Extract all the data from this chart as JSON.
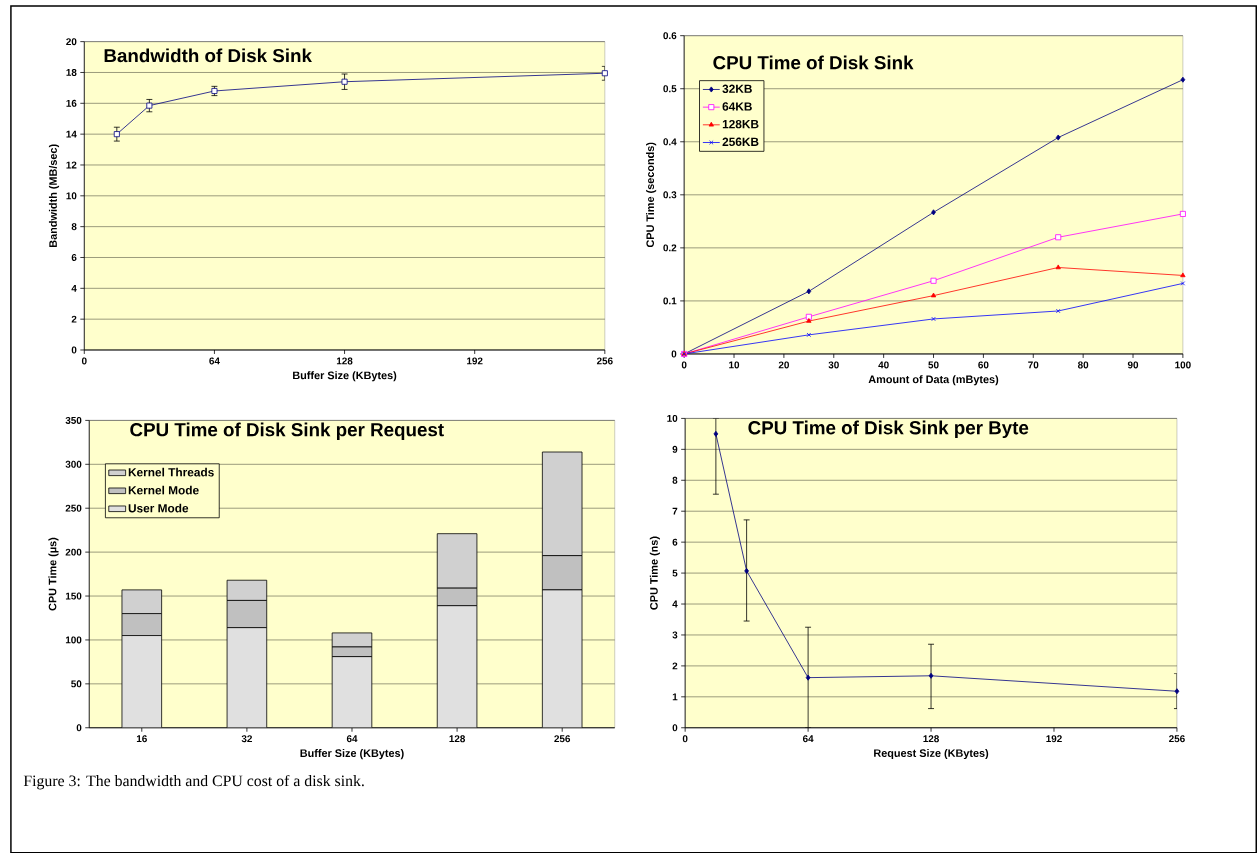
{
  "chart_data": [
    {
      "type": "line",
      "title": "Bandwidth of Disk Sink",
      "xlabel": "Buffer Size (KBytes)",
      "ylabel": "Bandwidth (MB/sec)",
      "x": [
        16,
        32,
        64,
        128,
        256
      ],
      "series": [
        {
          "color": "#000080",
          "values": [
            14.0,
            15.85,
            16.8,
            17.4,
            17.95
          ],
          "errors": [
            0.45,
            0.4,
            0.3,
            0.5,
            0.45
          ]
        }
      ],
      "xlim": [
        0,
        256
      ],
      "xticks": [
        0,
        64,
        128,
        192,
        256
      ],
      "ylim": [
        0,
        20
      ],
      "yticks": [
        0,
        2,
        4,
        6,
        8,
        10,
        12,
        14,
        16,
        18,
        20
      ],
      "grid": "y",
      "marker": "square"
    },
    {
      "type": "line",
      "title": "CPU Time of Disk Sink",
      "xlabel": "Amount of Data (mBytes)",
      "ylabel": "CPU Time (seconds)",
      "x": [
        0,
        25,
        50,
        75,
        100
      ],
      "series": [
        {
          "name": "32KB",
          "color": "#000080",
          "marker": "diamond",
          "values": [
            0,
            0.118,
            0.267,
            0.408,
            0.517
          ]
        },
        {
          "name": "64KB",
          "color": "#ff00ff",
          "marker": "square",
          "values": [
            0,
            0.07,
            0.138,
            0.22,
            0.264
          ]
        },
        {
          "name": "128KB",
          "color": "#ff0000",
          "marker": "triangle",
          "values": [
            0,
            0.062,
            0.11,
            0.163,
            0.148
          ]
        },
        {
          "name": "256KB",
          "color": "#0000ff",
          "marker": "cross",
          "values": [
            0,
            0.036,
            0.066,
            0.081,
            0.133
          ]
        }
      ],
      "xlim": [
        0,
        100
      ],
      "xticks": [
        0,
        10,
        20,
        30,
        40,
        50,
        60,
        70,
        80,
        90,
        100
      ],
      "ylim": [
        0,
        0.6
      ],
      "yticks": [
        0,
        0.1,
        0.2,
        0.3,
        0.4,
        0.5,
        0.6
      ],
      "grid": "y",
      "legend": "top left"
    },
    {
      "type": "bar",
      "stacked": true,
      "title": "CPU Time of Disk Sink per Request",
      "xlabel": "Buffer Size (KBytes)",
      "ylabel": "CPU Time (µs)",
      "categories": [
        "16",
        "32",
        "64",
        "128",
        "256"
      ],
      "series": [
        {
          "name": "User Mode",
          "color": "#e0e0e0",
          "values": [
            105,
            114,
            81,
            139,
            157
          ]
        },
        {
          "name": "Kernel Mode",
          "color": "#c0c0c0",
          "values": [
            25,
            31,
            11,
            20,
            39
          ]
        },
        {
          "name": "Kernel Threads",
          "color": "#d0d0d0",
          "values": [
            27,
            23,
            16,
            62,
            118
          ]
        }
      ],
      "ylim": [
        0,
        350
      ],
      "yticks": [
        0,
        50,
        100,
        150,
        200,
        250,
        300,
        350
      ],
      "grid": "y",
      "legend": "top left",
      "annotations": [
        "Figure 3: The bandwidth and CPU cost of a disk sink."
      ]
    },
    {
      "type": "line",
      "title": "CPU Time of Disk Sink per Byte",
      "xlabel": "Request Size (KBytes)",
      "ylabel": "CPU Time (ns)",
      "x": [
        16,
        32,
        64,
        128,
        256
      ],
      "series": [
        {
          "color": "#000080",
          "values": [
            9.5,
            5.07,
            1.62,
            1.68,
            1.18
          ],
          "errors": [
            [
              7.55,
              10
            ],
            [
              3.45,
              6.72
            ],
            [
              0,
              3.25
            ],
            [
              0.62,
              2.7
            ],
            [
              0.62,
              1.75
            ]
          ]
        }
      ],
      "xlim": [
        0,
        256
      ],
      "xticks": [
        0,
        64,
        128,
        192,
        256
      ],
      "ylim": [
        0,
        10
      ],
      "yticks": [
        0,
        1,
        2,
        3,
        4,
        5,
        6,
        7,
        8,
        9,
        10
      ],
      "grid": "y",
      "marker": "diamond"
    }
  ]
}
